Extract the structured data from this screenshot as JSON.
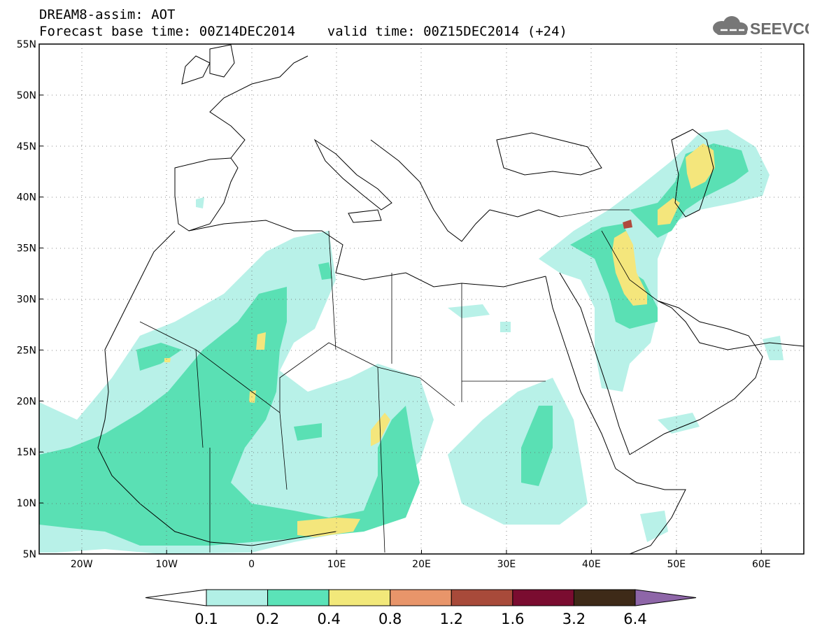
{
  "header": {
    "title_line1": "DREAM8-assim: AOT",
    "title_line2": "Forecast base time: 00Z14DEC2014    valid time: 00Z15DEC2014 (+24)",
    "logo_text": "SEEVCCC"
  },
  "map": {
    "projection": "lat-lon",
    "lon_range": [
      -25,
      65
    ],
    "lat_range": [
      5,
      55
    ],
    "lat_labels": [
      "55N",
      "50N",
      "45N",
      "40N",
      "35N",
      "30N",
      "25N",
      "20N",
      "15N",
      "10N",
      "5N"
    ],
    "lat_values": [
      55,
      50,
      45,
      40,
      35,
      30,
      25,
      20,
      15,
      10,
      5
    ],
    "lon_labels": [
      "20W",
      "10W",
      "0",
      "10E",
      "20E",
      "30E",
      "40E",
      "50E",
      "60E"
    ],
    "lon_values": [
      -20,
      -10,
      0,
      10,
      20,
      30,
      40,
      50,
      60
    ],
    "grid": "dotted"
  },
  "colorbar": {
    "labels": [
      "0.1",
      "0.2",
      "0.4",
      "0.8",
      "1.2",
      "1.6",
      "3.2",
      "6.4"
    ],
    "colors": [
      "#ffffff",
      "#b2f0e6",
      "#5be3b8",
      "#f2e87a",
      "#e8956a",
      "#a84a3a",
      "#7a0c30",
      "#3e2a18",
      "#8e66a8"
    ]
  },
  "colors": {
    "level_01": "#b8f1e8",
    "level_02": "#5ae0b4",
    "level_04": "#f4e67c",
    "level_12": "#b04a3c"
  }
}
